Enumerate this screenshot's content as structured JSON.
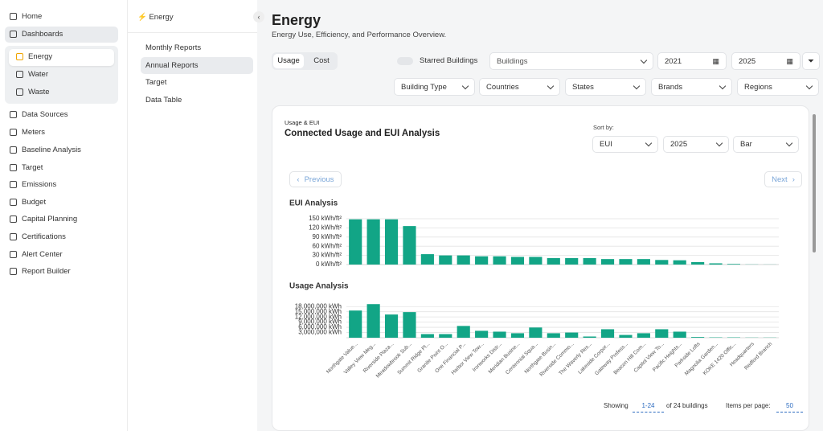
{
  "sidebar": {
    "items": [
      "Home",
      "Dashboards",
      "Energy",
      "Water",
      "Waste",
      "Data Sources",
      "Meters",
      "Baseline Analysis",
      "Target",
      "Emissions",
      "Budget",
      "Capital Planning",
      "Certifications",
      "Alert Center",
      "Report Builder"
    ]
  },
  "subnav": {
    "title": "Energy",
    "items": [
      "Monthly Reports",
      "Annual Reports",
      "Target",
      "Data Table"
    ]
  },
  "header": {
    "title": "Energy",
    "subtitle": "Energy Use, Efficiency, and Performance Overview."
  },
  "filters": {
    "tabs": [
      "Usage",
      "Cost"
    ],
    "starred": "Starred Buildings",
    "buildings": "Buildings",
    "start_year": "2021",
    "end_year": "2025",
    "dropdowns": [
      "Building Type",
      "Countries",
      "States",
      "Brands",
      "Regions"
    ]
  },
  "card": {
    "eyebrow": "Usage & EUI",
    "title": "Connected Usage and EUI Analysis",
    "sort_label": "Sort by:",
    "sort": [
      "EUI",
      "2025",
      "Bar"
    ],
    "previous": "Previous",
    "next": "Next"
  },
  "pagination": {
    "showing": "Showing",
    "range": "1-24",
    "total": "of 24 buildings",
    "per_page_label": "Items per page:",
    "per_page": "50"
  },
  "chart_data": [
    {
      "type": "bar",
      "title": "EUI Analysis",
      "values": [
        148,
        148,
        148,
        126,
        34,
        30,
        30,
        27,
        27,
        25,
        25,
        21,
        21,
        21,
        18,
        18,
        18,
        15,
        14,
        8,
        4,
        2,
        0.5,
        0.3
      ],
      "color": "#12a586",
      "ylim": [
        0,
        150
      ],
      "yticks": [
        {
          "value": 0,
          "label": "0 kWh/ft²"
        },
        {
          "value": 30,
          "label": "30 kWh/ft²"
        },
        {
          "value": 60,
          "label": "60 kWh/ft²"
        },
        {
          "value": 90,
          "label": "90 kWh/ft²"
        },
        {
          "value": 120,
          "label": "120 kWh/ft²"
        },
        {
          "value": 150,
          "label": "150 kWh/ft²"
        }
      ],
      "grid": true
    },
    {
      "type": "bar",
      "title": "Usage Analysis",
      "categories": [
        "Northgate Value...",
        "Valley View Meg...",
        "Riverside Plaza...",
        "Meadowbrook Sub...",
        "Summit Ridge Pl...",
        "Granite Point O...",
        "One Financial P...",
        "Harbor View Tow...",
        "Ironworks Distr...",
        "Meridian Busine...",
        "Centennial Squa...",
        "Northgate Busin...",
        "Riverside Commo...",
        "The Waverly Res...",
        "Lakeside Corpor...",
        "Gateway Profess...",
        "Beacon Hill Com...",
        "Capitol View To...",
        "Pacific Heights...",
        "Parkside Lofts",
        "Magnolia Garden...",
        "KOKE 1420 Offic...",
        "Headquarters",
        "Redford Branch"
      ],
      "values": [
        15700000,
        19400000,
        13400000,
        14800000,
        2100000,
        2100000,
        6800000,
        4000000,
        3500000,
        2600000,
        5900000,
        2600000,
        3000000,
        700000,
        4900000,
        1600000,
        2600000,
        4900000,
        3500000,
        400000,
        200000,
        200000,
        100000,
        100000
      ],
      "color": "#12a586",
      "ylim": [
        0,
        19500000
      ],
      "yticks": [
        {
          "value": 3000000,
          "label": "3,000,000 kWh"
        },
        {
          "value": 6000000,
          "label": "6,000,000 kWh"
        },
        {
          "value": 9000000,
          "label": "9,000,000 kWh"
        },
        {
          "value": 12000000,
          "label": "12,000,000 kWh"
        },
        {
          "value": 15000000,
          "label": "15,000,000 kWh"
        },
        {
          "value": 18000000,
          "label": "18,000,000 kWh"
        }
      ],
      "grid": true
    }
  ]
}
